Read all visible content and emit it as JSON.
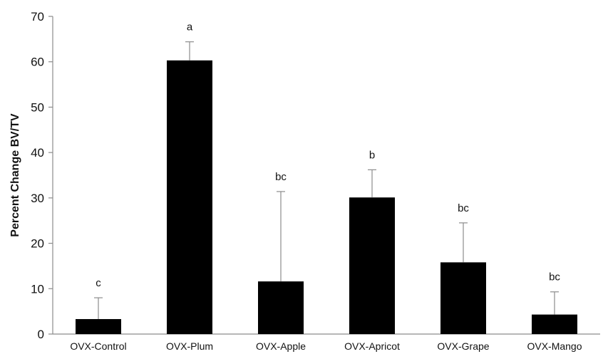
{
  "chart_data": {
    "type": "bar",
    "title": "",
    "xlabel": "",
    "ylabel": "Percent Change BV/TV",
    "ylim": [
      0,
      70
    ],
    "yticks": [
      0,
      10,
      20,
      30,
      40,
      50,
      60,
      70
    ],
    "grid": false,
    "legend": "none",
    "categories": [
      "OVX-Control",
      "OVX-Plum",
      "OVX-Apple",
      "OVX-Apricot",
      "OVX-Grape",
      "OVX-Mango"
    ],
    "values": [
      3.3,
      60.3,
      11.6,
      30.1,
      15.8,
      4.3
    ],
    "error_upper": [
      4.7,
      4.1,
      19.8,
      6.1,
      8.7,
      5.0
    ],
    "significance_labels": [
      "c",
      "a",
      "bc",
      "b",
      "bc",
      "bc"
    ],
    "bar_color": "#000000",
    "axis_color": "#8c8c8c"
  }
}
